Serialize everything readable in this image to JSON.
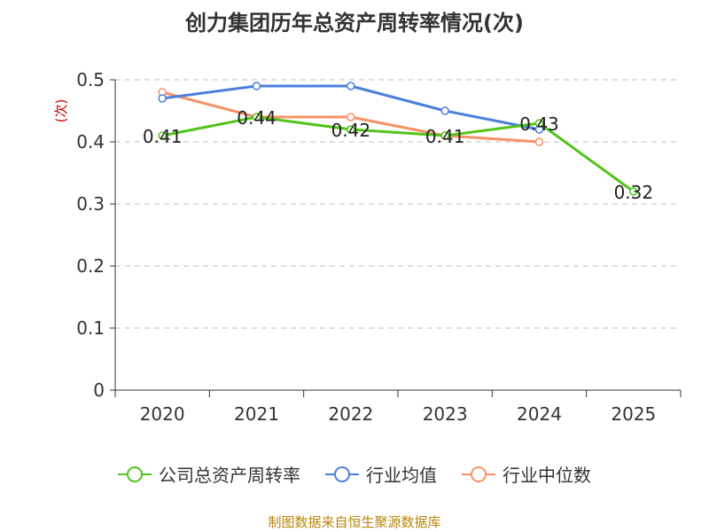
{
  "title": "创力集团历年总资产周转率情况(次)",
  "source": "制图数据来自恒生聚源数据库",
  "chart_data": {
    "type": "line",
    "title": "创力集团历年总资产周转率情况(次)",
    "ylabel": "(次)",
    "xlabel": "",
    "categories": [
      "2020",
      "2021",
      "2022",
      "2023",
      "2024",
      "2025"
    ],
    "ylim": [
      0,
      0.5
    ],
    "yticks": [
      "0",
      "0.1",
      "0.2",
      "0.3",
      "0.4",
      "0.5"
    ],
    "grid": true,
    "legend_position": "bottom",
    "series": [
      {
        "name": "公司总资产周转率",
        "color": "#52c41a",
        "values": [
          0.41,
          0.44,
          0.42,
          0.41,
          0.43,
          0.32
        ],
        "labels": [
          "0.41",
          "0.44",
          "0.42",
          "0.41",
          "0.43",
          "0.32"
        ]
      },
      {
        "name": "行业均值",
        "color": "#4a7fdc",
        "values": [
          0.47,
          0.49,
          0.49,
          0.45,
          0.42,
          null
        ],
        "labels": null
      },
      {
        "name": "行业中位数",
        "color": "#f79165",
        "values": [
          0.48,
          0.44,
          0.44,
          0.41,
          0.4,
          null
        ],
        "labels": null
      }
    ]
  }
}
